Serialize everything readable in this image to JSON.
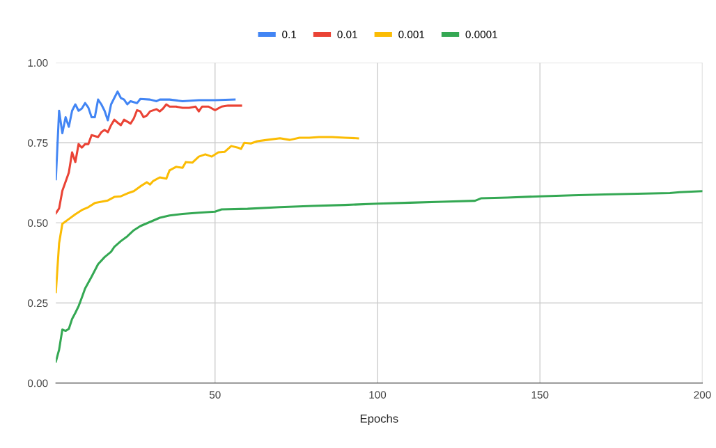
{
  "chart_data": {
    "type": "line",
    "xlabel": "Epochs",
    "xlim": [
      1,
      200
    ],
    "xticks": [
      50,
      100,
      150,
      200
    ],
    "ylim": [
      0,
      1
    ],
    "yticks": [
      {
        "value": 0,
        "label": "0.00"
      },
      {
        "value": 0.25,
        "label": "0.25"
      },
      {
        "value": 0.5,
        "label": "0.50"
      },
      {
        "value": 0.75,
        "label": "0.75"
      },
      {
        "value": 1,
        "label": "1.00"
      }
    ],
    "grid": true,
    "legend": "top",
    "marker": "none",
    "line_style": "solid",
    "series": [
      {
        "name": "0.1",
        "color": "#4285f4",
        "x": [
          1,
          2,
          3,
          4,
          5,
          6,
          7,
          8,
          9,
          10,
          11,
          12,
          13,
          14,
          15,
          16,
          17,
          18,
          19,
          20,
          21,
          22,
          23,
          24,
          26,
          27,
          30,
          32,
          33,
          36,
          40,
          45,
          50,
          56
        ],
        "values": [
          0.636,
          0.85,
          0.78,
          0.83,
          0.8,
          0.85,
          0.87,
          0.85,
          0.857,
          0.874,
          0.86,
          0.83,
          0.83,
          0.885,
          0.87,
          0.85,
          0.82,
          0.87,
          0.89,
          0.91,
          0.89,
          0.885,
          0.87,
          0.88,
          0.874,
          0.887,
          0.885,
          0.88,
          0.885,
          0.885,
          0.88,
          0.883,
          0.883,
          0.885
        ]
      },
      {
        "name": "0.01",
        "color": "#ea4335",
        "x": [
          1,
          2,
          3,
          5,
          6,
          7,
          8,
          9,
          10,
          11,
          12,
          14,
          15,
          16,
          17,
          18,
          19,
          20,
          21,
          22,
          24,
          25,
          26,
          27,
          28,
          29,
          30,
          32,
          33,
          34,
          35,
          36,
          38,
          40,
          42,
          44,
          45,
          46,
          48,
          50,
          52,
          54,
          58
        ],
        "values": [
          0.53,
          0.545,
          0.6,
          0.657,
          0.72,
          0.69,
          0.746,
          0.735,
          0.746,
          0.746,
          0.774,
          0.768,
          0.783,
          0.79,
          0.783,
          0.805,
          0.822,
          0.813,
          0.805,
          0.822,
          0.81,
          0.826,
          0.852,
          0.848,
          0.83,
          0.835,
          0.848,
          0.855,
          0.848,
          0.857,
          0.87,
          0.863,
          0.863,
          0.859,
          0.859,
          0.863,
          0.848,
          0.863,
          0.863,
          0.852,
          0.863,
          0.866,
          0.866
        ]
      },
      {
        "name": "0.001",
        "color": "#fbbc04",
        "x": [
          1,
          2,
          3,
          5,
          7,
          9,
          11,
          13,
          15,
          17,
          19,
          21,
          23,
          25,
          27,
          29,
          30,
          31,
          33,
          35,
          36,
          38,
          40,
          41,
          43,
          45,
          47,
          49,
          51,
          53,
          55,
          57,
          58,
          59,
          61,
          63,
          66,
          70,
          73,
          76,
          79,
          82,
          86,
          90,
          94
        ],
        "values": [
          0.284,
          0.436,
          0.497,
          0.512,
          0.527,
          0.54,
          0.549,
          0.562,
          0.566,
          0.57,
          0.581,
          0.583,
          0.592,
          0.599,
          0.614,
          0.627,
          0.62,
          0.631,
          0.642,
          0.638,
          0.664,
          0.675,
          0.672,
          0.69,
          0.688,
          0.707,
          0.714,
          0.707,
          0.72,
          0.722,
          0.74,
          0.735,
          0.731,
          0.75,
          0.748,
          0.755,
          0.759,
          0.764,
          0.759,
          0.766,
          0.766,
          0.768,
          0.768,
          0.766,
          0.764
        ]
      },
      {
        "name": "0.0001",
        "color": "#34a853",
        "x": [
          1,
          2,
          3,
          4,
          5,
          6,
          7,
          8,
          9,
          10,
          12,
          14,
          16,
          18,
          19,
          21,
          23,
          25,
          27,
          30,
          33,
          36,
          40,
          45,
          50,
          52,
          60,
          70,
          80,
          90,
          100,
          110,
          120,
          130,
          132,
          140,
          150,
          160,
          170,
          180,
          190,
          193,
          200
        ],
        "values": [
          0.067,
          0.104,
          0.167,
          0.163,
          0.169,
          0.2,
          0.219,
          0.24,
          0.267,
          0.295,
          0.332,
          0.371,
          0.393,
          0.41,
          0.425,
          0.443,
          0.458,
          0.477,
          0.49,
          0.503,
          0.516,
          0.523,
          0.528,
          0.532,
          0.535,
          0.542,
          0.544,
          0.549,
          0.553,
          0.556,
          0.56,
          0.563,
          0.566,
          0.569,
          0.577,
          0.579,
          0.583,
          0.586,
          0.589,
          0.591,
          0.593,
          0.596,
          0.599
        ]
      }
    ]
  }
}
